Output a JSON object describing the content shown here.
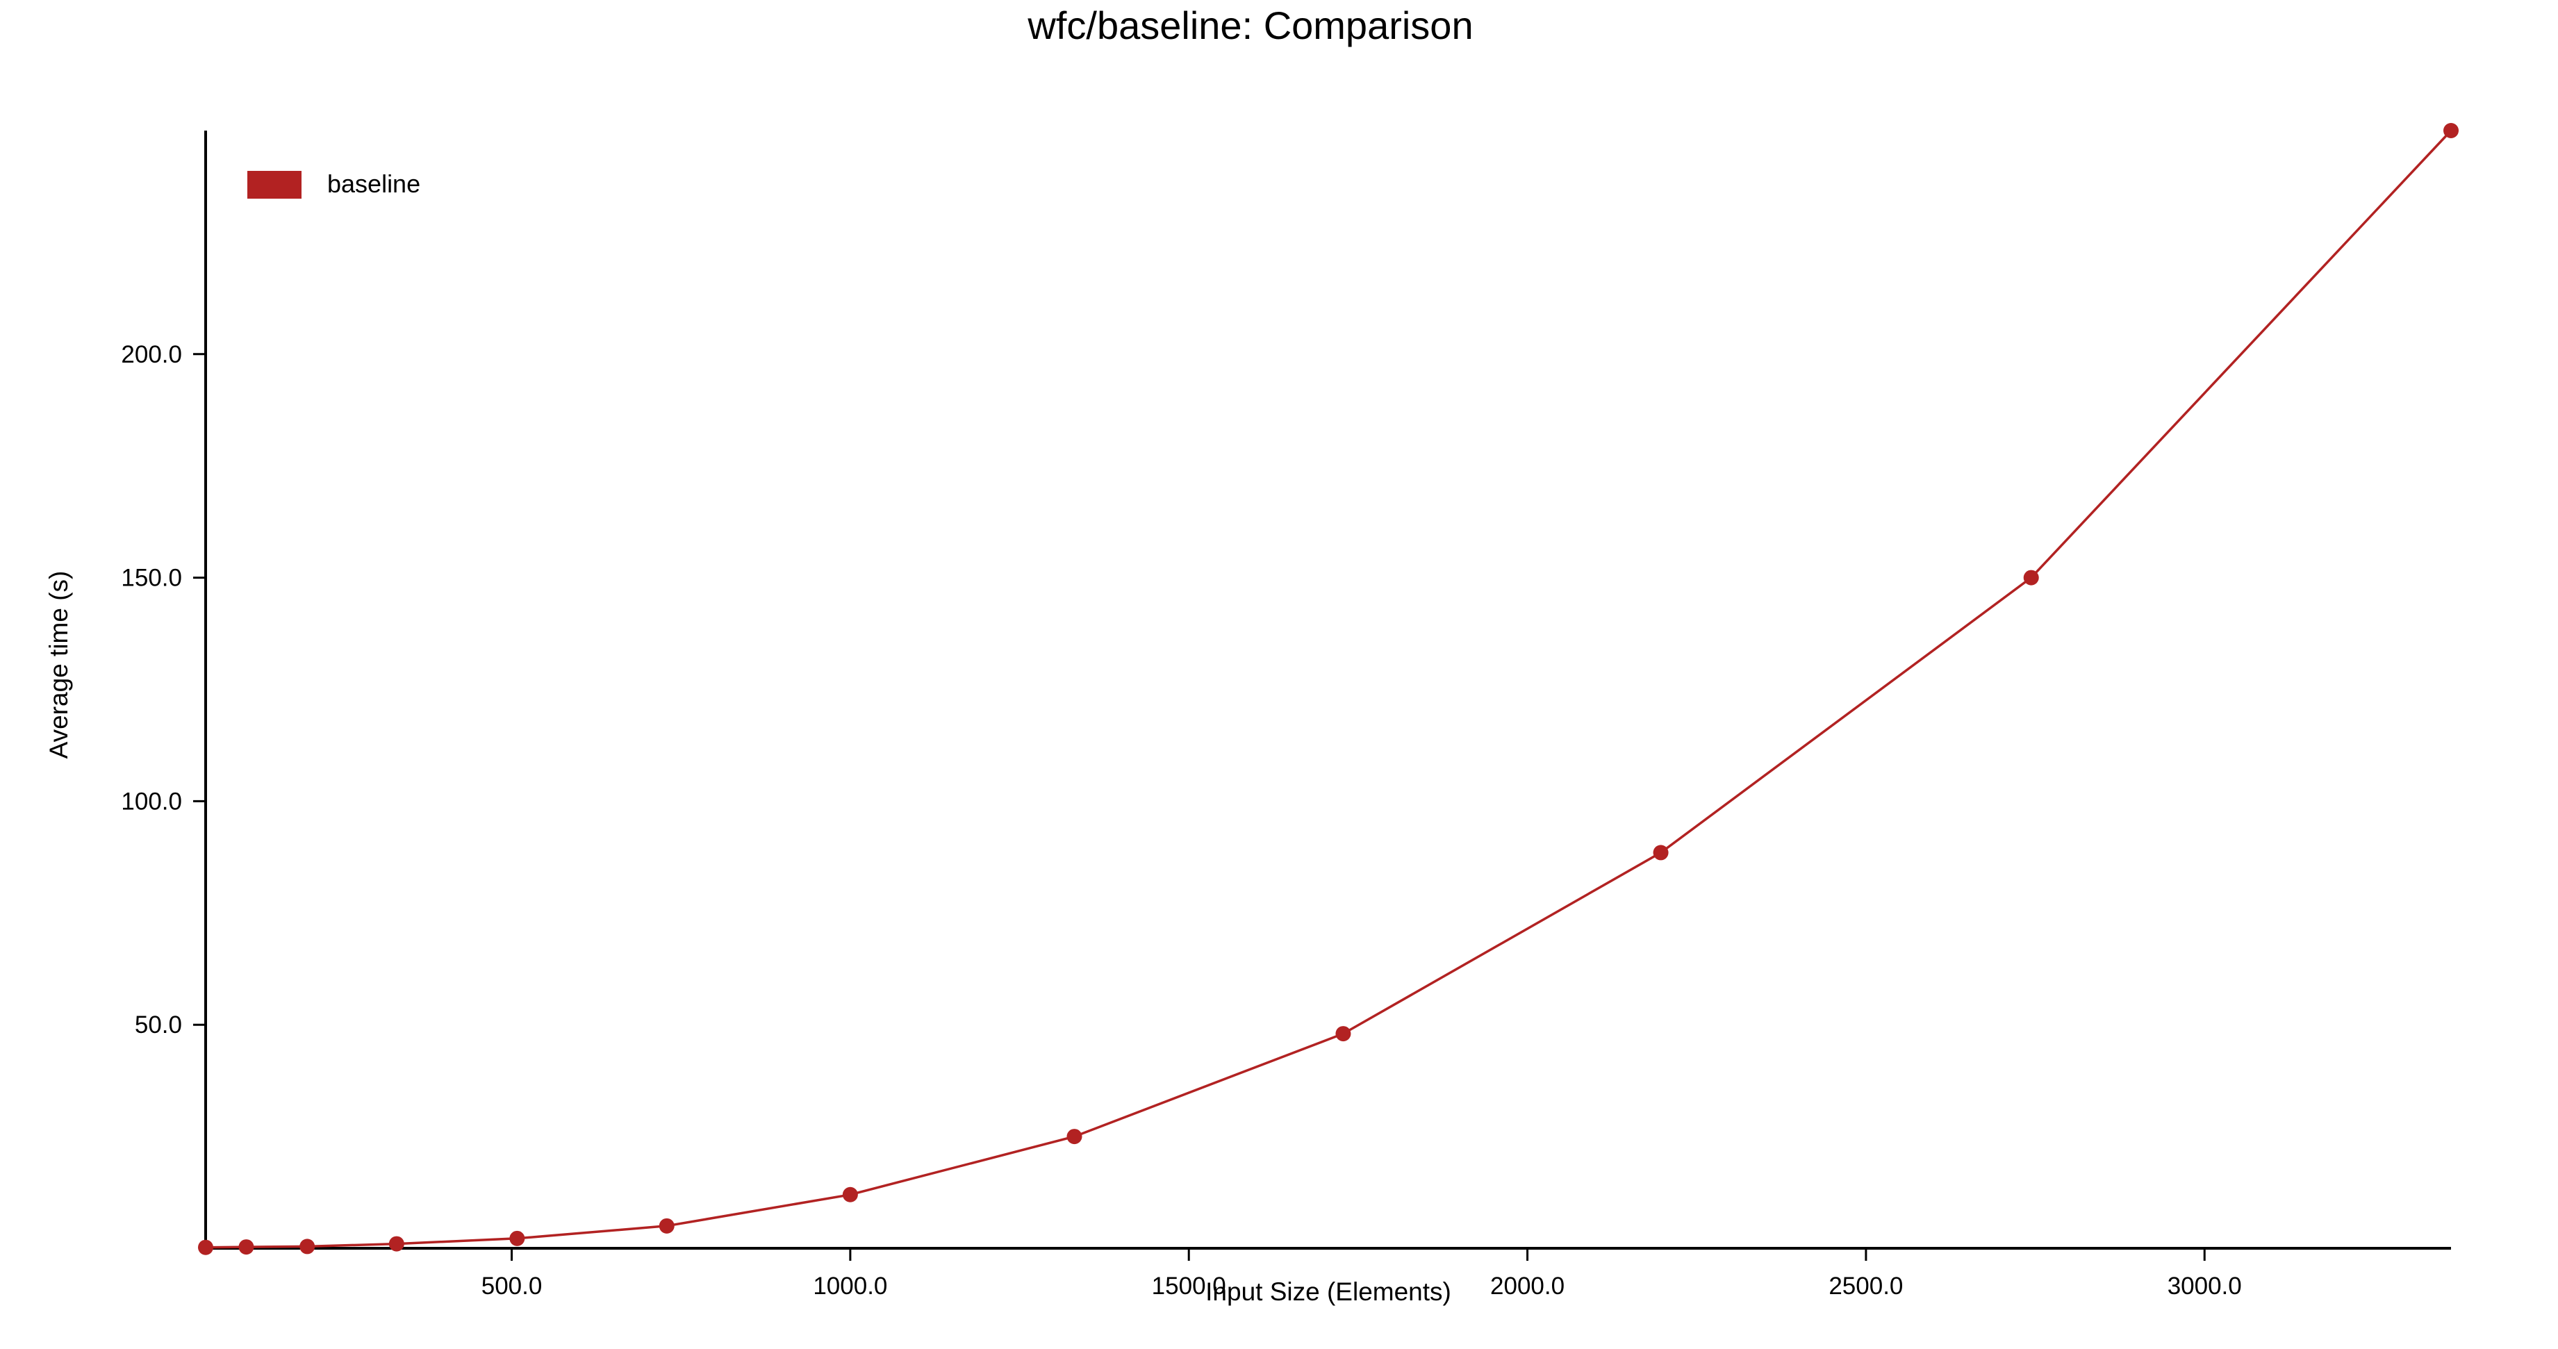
{
  "colors": {
    "series": "#b22222",
    "axis": "#000000",
    "background": "#ffffff"
  },
  "chart_data": {
    "type": "line",
    "title": "wfc/baseline: Comparison",
    "xlabel": "Input Size (Elements)",
    "ylabel": "Average time (s)",
    "xlim": [
      48,
      3364
    ],
    "ylim": [
      0,
      250
    ],
    "xticks": [
      500,
      1000,
      1500,
      2000,
      2500,
      3000
    ],
    "xtick_labels": [
      "500.0",
      "1000.0",
      "1500.0",
      "2000.0",
      "2500.0",
      "3000.0"
    ],
    "yticks": [
      50,
      100,
      150,
      200
    ],
    "ytick_labels": [
      "50.0",
      "100.0",
      "150.0",
      "200.0"
    ],
    "grid": false,
    "legend": "top-left",
    "series": [
      {
        "name": "baseline",
        "x": [
          48,
          108,
          198,
          330,
          508,
          729,
          1000,
          1331,
          1728,
          2197,
          2744,
          3364
        ],
        "y": [
          0.2,
          0.3,
          0.4,
          1.0,
          2.2,
          5.0,
          12.0,
          25.0,
          48.0,
          88.5,
          150.0,
          250.0
        ]
      }
    ]
  }
}
